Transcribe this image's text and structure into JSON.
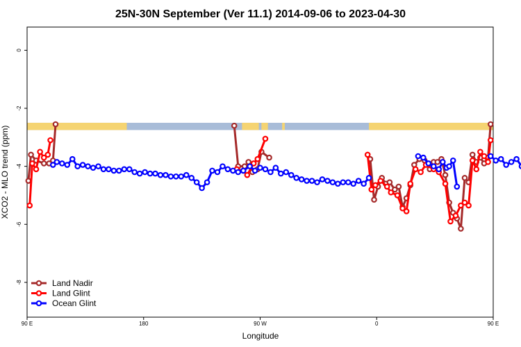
{
  "chart_data": {
    "type": "line",
    "title": "25N-30N September (Ver 11.1)   2014-09-06 to 2023-04-30",
    "xlabel": "Longitude",
    "ylabel": "XCO2 - MLO trend (ppm)",
    "xlim": [
      90,
      450
    ],
    "ylim": [
      -9.2,
      0.8
    ],
    "x_ticks": [
      {
        "value": 90,
        "label": "90 E"
      },
      {
        "value": 180,
        "label": "180"
      },
      {
        "value": 270,
        "label": "90 W"
      },
      {
        "value": 360,
        "label": "0"
      },
      {
        "value": 450,
        "label": "90 E"
      },
      {
        "value": 540,
        "label": "180"
      }
    ],
    "y_ticks": [
      {
        "value": 0,
        "label": "0"
      },
      {
        "value": -2,
        "label": "-2"
      },
      {
        "value": -4,
        "label": "-4"
      },
      {
        "value": -6,
        "label": "-6"
      },
      {
        "value": -8,
        "label": "-8"
      }
    ],
    "grid": false,
    "legend_position": "bottom-left",
    "land_ocean_strip": {
      "y_range": [
        -2.75,
        -2.5
      ],
      "ocean_color": "#a8bcd8",
      "land_color": "#f5d472",
      "land_segments": [
        [
          90,
          167
        ],
        [
          256,
          269
        ],
        [
          271,
          276
        ],
        [
          287,
          289
        ],
        [
          354,
          453
        ],
        [
          475,
          483
        ],
        [
          485,
          487
        ],
        [
          491,
          495
        ],
        [
          507,
          515
        ],
        [
          522,
          531
        ]
      ]
    },
    "series": [
      {
        "name": "Land Nadir",
        "color": "#a52a2a",
        "points": [
          [
            91,
            -4.5
          ],
          [
            93,
            -3.6
          ],
          [
            97,
            -3.8
          ],
          [
            103,
            -3.9
          ],
          [
            107,
            -3.9
          ],
          [
            110,
            -3.8
          ],
          [
            112,
            -2.55
          ],
          [
            250,
            -2.6
          ],
          [
            253,
            -4.0
          ],
          [
            258,
            -4.0
          ],
          [
            261,
            -3.85
          ],
          [
            264,
            -4.2
          ],
          [
            268,
            -4.1
          ],
          [
            271,
            -3.5
          ],
          [
            277,
            -3.7
          ],
          [
            355,
            -3.75
          ],
          [
            358,
            -5.15
          ],
          [
            361,
            -4.7
          ],
          [
            364,
            -4.4
          ],
          [
            367,
            -4.6
          ],
          [
            370,
            -4.55
          ],
          [
            374,
            -4.8
          ],
          [
            377,
            -4.7
          ],
          [
            380,
            -5.4
          ],
          [
            383,
            -5.1
          ],
          [
            386,
            -4.65
          ],
          [
            389,
            -3.95
          ],
          [
            393,
            -3.75
          ],
          [
            397,
            -3.8
          ],
          [
            401,
            -4.1
          ],
          [
            404,
            -3.85
          ],
          [
            407,
            -3.85
          ],
          [
            410,
            -3.75
          ],
          [
            413,
            -4.3
          ],
          [
            416,
            -5.25
          ],
          [
            419,
            -5.6
          ],
          [
            422,
            -5.8
          ],
          [
            425,
            -6.15
          ],
          [
            428,
            -4.4
          ],
          [
            431,
            -4.55
          ],
          [
            434,
            -3.6
          ],
          [
            437,
            -3.85
          ],
          [
            440,
            -3.7
          ],
          [
            443,
            -3.9
          ],
          [
            446,
            -3.7
          ],
          [
            448,
            -2.55
          ]
        ]
      },
      {
        "name": "Land Glint",
        "color": "#ff0000",
        "points": [
          [
            92,
            -5.35
          ],
          [
            94,
            -3.9
          ],
          [
            97,
            -4.1
          ],
          [
            100,
            -3.5
          ],
          [
            103,
            -3.7
          ],
          [
            106,
            -3.6
          ],
          [
            108,
            -3.1
          ],
          [
            252,
            -4.1
          ],
          [
            257,
            -4.15
          ],
          [
            260,
            -4.3
          ],
          [
            265,
            -3.9
          ],
          [
            268,
            -3.75
          ],
          [
            274,
            -3.05
          ],
          [
            353,
            -3.6
          ],
          [
            356,
            -4.8
          ],
          [
            359,
            -4.65
          ],
          [
            363,
            -4.5
          ],
          [
            368,
            -4.7
          ],
          [
            371,
            -4.9
          ],
          [
            376,
            -5.0
          ],
          [
            380,
            -5.45
          ],
          [
            383,
            -5.55
          ],
          [
            386,
            -4.6
          ],
          [
            390,
            -4.1
          ],
          [
            394,
            -4.2
          ],
          [
            398,
            -3.95
          ],
          [
            404,
            -4.1
          ],
          [
            408,
            -4.2
          ],
          [
            413,
            -4.6
          ],
          [
            417,
            -5.9
          ],
          [
            421,
            -5.7
          ],
          [
            425,
            -5.35
          ],
          [
            428,
            -5.25
          ],
          [
            431,
            -5.35
          ],
          [
            434,
            -3.8
          ],
          [
            437,
            -4.1
          ],
          [
            440,
            -3.5
          ],
          [
            443,
            -3.65
          ],
          [
            446,
            -3.85
          ],
          [
            448,
            -3.1
          ]
        ]
      },
      {
        "name": "Ocean Glint",
        "color": "#0000ff",
        "points": [
          [
            110,
            -3.95
          ],
          [
            113,
            -3.85
          ],
          [
            117,
            -3.9
          ],
          [
            121,
            -3.95
          ],
          [
            125,
            -3.75
          ],
          [
            129,
            -4.0
          ],
          [
            133,
            -3.95
          ],
          [
            137,
            -4.0
          ],
          [
            141,
            -4.05
          ],
          [
            145,
            -4.0
          ],
          [
            149,
            -4.1
          ],
          [
            153,
            -4.1
          ],
          [
            157,
            -4.15
          ],
          [
            161,
            -4.15
          ],
          [
            165,
            -4.1
          ],
          [
            169,
            -4.1
          ],
          [
            173,
            -4.2
          ],
          [
            177,
            -4.25
          ],
          [
            181,
            -4.2
          ],
          [
            185,
            -4.25
          ],
          [
            189,
            -4.25
          ],
          [
            193,
            -4.3
          ],
          [
            197,
            -4.3
          ],
          [
            201,
            -4.35
          ],
          [
            205,
            -4.35
          ],
          [
            209,
            -4.35
          ],
          [
            213,
            -4.3
          ],
          [
            217,
            -4.4
          ],
          [
            221,
            -4.55
          ],
          [
            225,
            -4.75
          ],
          [
            229,
            -4.55
          ],
          [
            233,
            -4.15
          ],
          [
            237,
            -4.2
          ],
          [
            241,
            -4.0
          ],
          [
            245,
            -4.1
          ],
          [
            249,
            -4.15
          ],
          [
            253,
            -4.2
          ],
          [
            257,
            -4.15
          ],
          [
            262,
            -4.0
          ],
          [
            266,
            -4.15
          ],
          [
            270,
            -4.05
          ],
          [
            274,
            -4.1
          ],
          [
            278,
            -4.2
          ],
          [
            282,
            -4.05
          ],
          [
            286,
            -4.25
          ],
          [
            290,
            -4.2
          ],
          [
            294,
            -4.3
          ],
          [
            298,
            -4.4
          ],
          [
            302,
            -4.45
          ],
          [
            306,
            -4.5
          ],
          [
            310,
            -4.5
          ],
          [
            314,
            -4.55
          ],
          [
            318,
            -4.45
          ],
          [
            322,
            -4.5
          ],
          [
            326,
            -4.55
          ],
          [
            330,
            -4.6
          ],
          [
            334,
            -4.55
          ],
          [
            338,
            -4.55
          ],
          [
            342,
            -4.6
          ],
          [
            346,
            -4.5
          ],
          [
            350,
            -4.6
          ],
          [
            354,
            -4.4
          ],
          [
            392,
            -3.65
          ],
          [
            396,
            -3.7
          ],
          [
            400,
            -3.9
          ],
          [
            404,
            -4.0
          ],
          [
            408,
            -4.1
          ],
          [
            411,
            -3.85
          ],
          [
            414,
            -4.05
          ],
          [
            416,
            -4.0
          ],
          [
            419,
            -3.8
          ],
          [
            422,
            -4.7
          ],
          [
            448,
            -3.65
          ],
          [
            452,
            -3.8
          ],
          [
            456,
            -3.75
          ],
          [
            460,
            -3.95
          ],
          [
            464,
            -3.85
          ],
          [
            468,
            -3.75
          ],
          [
            472,
            -4.0
          ],
          [
            476,
            -3.95
          ],
          [
            480,
            -4.0
          ],
          [
            484,
            -4.0
          ],
          [
            488,
            -4.1
          ],
          [
            492,
            -4.15
          ],
          [
            496,
            -4.15
          ]
        ]
      }
    ]
  }
}
